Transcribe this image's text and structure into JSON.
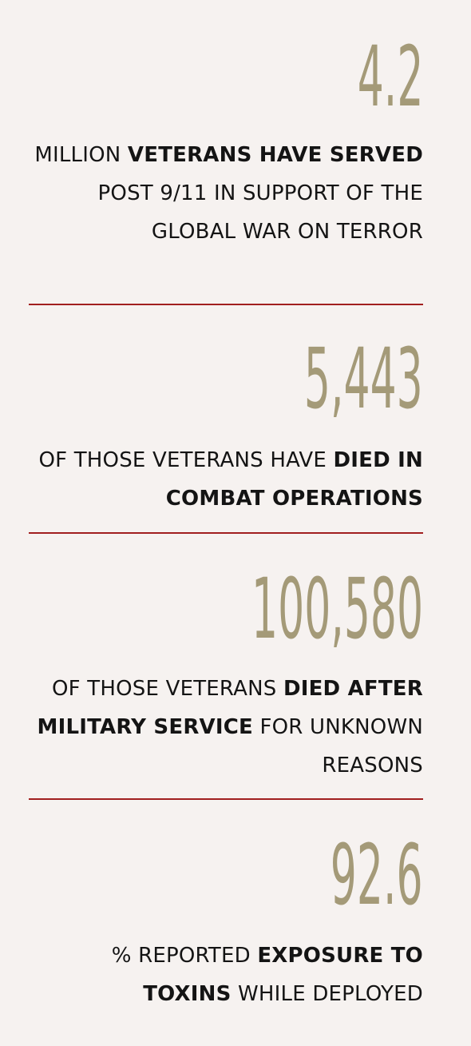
{
  "stats": [
    {
      "number": "4.2",
      "parts": [
        "MILLION ",
        "VETERANS HAVE SERVED",
        " POST 9/11 IN SUPPORT OF THE GLOBAL WAR ON TERROR"
      ]
    },
    {
      "number": "5,443",
      "parts": [
        "OF THOSE VETERANS HAVE ",
        "DIED IN COMBAT OPERATIONS",
        ""
      ]
    },
    {
      "number": "100,580",
      "parts": [
        "OF THOSE VETERANS ",
        "DIED AFTER MILITARY SERVICE",
        " FOR UNKNOWN REASONS"
      ]
    },
    {
      "number": "92.6",
      "parts": [
        "% REPORTED ",
        "EXPOSURE TO TOXINS",
        " WHILE DEPLOYED"
      ]
    }
  ],
  "colors": {
    "background": "#f6f2f0",
    "number": "#a49a78",
    "divider": "#a11f1f",
    "text": "#141414"
  }
}
